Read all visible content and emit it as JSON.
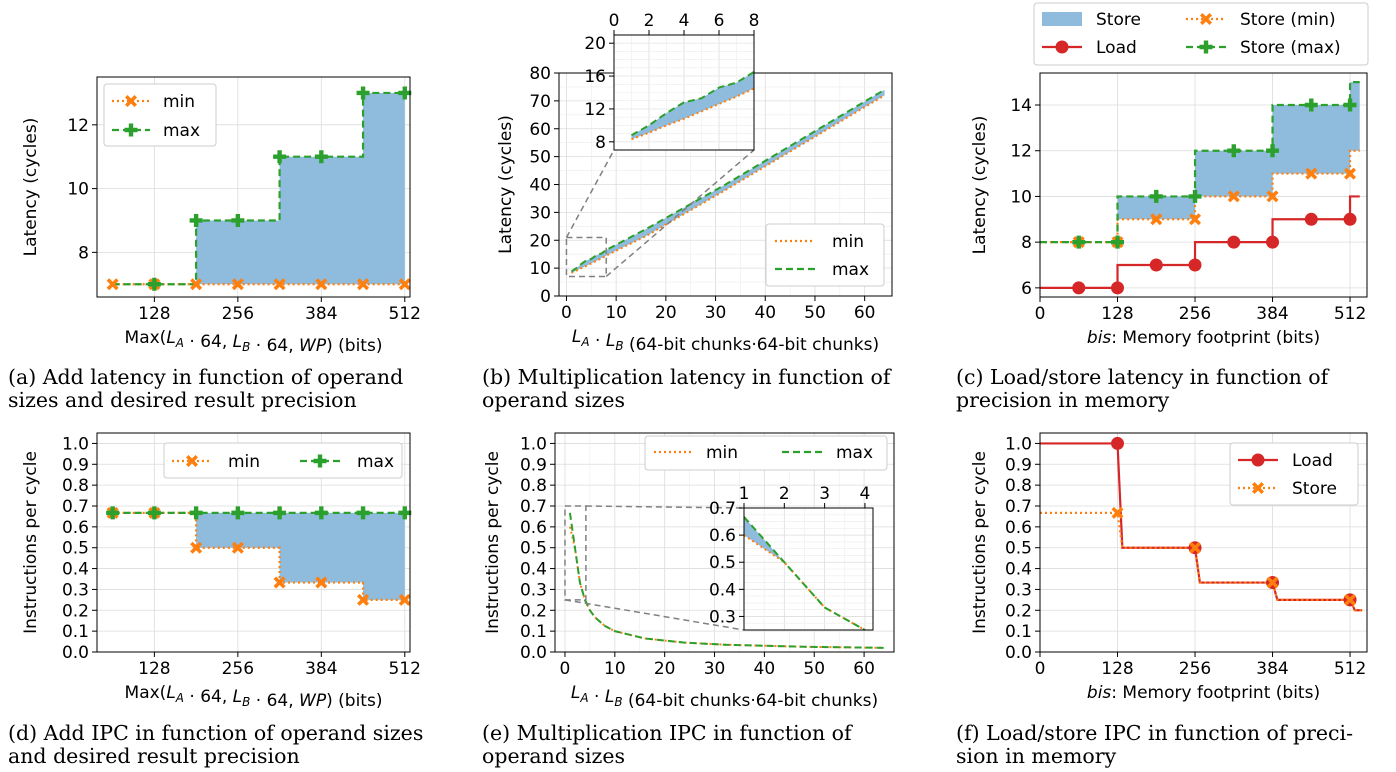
{
  "colors": {
    "fill": "#8fbbdc",
    "orange": "#ff7f0e",
    "green": "#2ca02c",
    "red": "#d62728",
    "grid": "#dcdcdc",
    "zoom_box": "#808080"
  },
  "captions": {
    "a_line1": "(a) Add latency in function of operand",
    "a_line2": "sizes and desired result precision",
    "b_line1": "(b) Multiplication latency in function of",
    "b_line2": "operand sizes",
    "c_line1": "(c) Load/store latency in function of",
    "c_line2": "precision in memory",
    "d_line1": "(d) Add IPC in function of operand sizes",
    "d_line2": "and desired result precision",
    "e_line1": "(e) Multiplication IPC in function of",
    "e_line2": "operand sizes",
    "f_line1": "(f) Load/store IPC in function of preci-",
    "f_line2": "sion in memory"
  },
  "chart_data": [
    {
      "id": "a",
      "type": "area",
      "xlabel": "Max(L_A · 64, L_B · 64, WP) (bits)",
      "ylabel": "Latency (cycles)",
      "xlim": [
        40,
        520
      ],
      "ylim": [
        6.6,
        13.5
      ],
      "xticks": [
        128,
        256,
        384,
        512
      ],
      "yticks": [
        8,
        10,
        12
      ],
      "legend": "upper-left",
      "series": [
        {
          "name": "min",
          "style": "dotted-x",
          "x": [
            64,
            128,
            192,
            256,
            320,
            384,
            448,
            512
          ],
          "y": [
            7,
            7,
            7,
            7,
            7,
            7,
            7,
            7
          ]
        },
        {
          "name": "max",
          "style": "dashed-plus",
          "x": [
            64,
            128,
            192,
            256,
            320,
            384,
            448,
            512
          ],
          "y": [
            7,
            7,
            9,
            9,
            11,
            11,
            13,
            13
          ]
        }
      ]
    },
    {
      "id": "b",
      "type": "line",
      "xlabel": "L_A · L_B (64-bit chunks·64-bit chunks)",
      "ylabel": "Latency (cycles)",
      "xlim": [
        -1.5,
        65.5
      ],
      "ylim": [
        0,
        80
      ],
      "xticks": [
        0,
        10,
        20,
        30,
        40,
        50,
        60
      ],
      "yticks": [
        0,
        10,
        20,
        30,
        40,
        50,
        60,
        70,
        80
      ],
      "legend": "lower-right",
      "series": [
        {
          "name": "min",
          "style": "dotted",
          "x": [
            1,
            2,
            3,
            4,
            5,
            6,
            7,
            8,
            16,
            32,
            48,
            64
          ],
          "y": [
            8.3,
            9.1,
            10,
            10.8,
            11.7,
            12.6,
            13.5,
            14.5,
            21.5,
            38,
            55,
            72
          ]
        },
        {
          "name": "max",
          "style": "dashed",
          "x": [
            1,
            2,
            3,
            4,
            5,
            6,
            7,
            8,
            16,
            32,
            48,
            64
          ],
          "y": [
            8.8,
            10,
            11.5,
            12.8,
            13.3,
            14.6,
            15.2,
            16.5,
            24,
            40,
            57,
            74
          ]
        }
      ],
      "inset": {
        "xlim": [
          0,
          8
        ],
        "ylim": [
          7,
          21
        ],
        "xticks": [
          0,
          2,
          4,
          6,
          8
        ],
        "yticks": [
          8,
          12,
          16,
          20
        ],
        "zoom_region": {
          "x": [
            0,
            8
          ],
          "y": [
            7,
            21
          ]
        }
      }
    },
    {
      "id": "c",
      "type": "area",
      "xlabel": "bis: Memory footprint (bits)",
      "ylabel": "Latency (cycles)",
      "xlim": [
        0,
        540
      ],
      "ylim": [
        5.6,
        15.4
      ],
      "xticks": [
        0,
        128,
        256,
        384,
        512
      ],
      "yticks": [
        6,
        8,
        10,
        12,
        14
      ],
      "legend": "above-plot",
      "series": [
        {
          "name": "Store",
          "style": "filled-band"
        },
        {
          "name": "Load",
          "style": "solid-circle",
          "x": [
            0,
            64,
            128,
            192,
            256,
            320,
            384,
            448,
            512,
            528
          ],
          "y": [
            6,
            6,
            7,
            7,
            8,
            8,
            9,
            9,
            10,
            10
          ],
          "markers_x": [
            64,
            128,
            192,
            256,
            320,
            384,
            448,
            512
          ],
          "markers_y": [
            6,
            6,
            7,
            7,
            8,
            8,
            9,
            9
          ]
        },
        {
          "name": "Store (min)",
          "style": "dotted-x",
          "x": [
            0,
            64,
            128,
            192,
            256,
            320,
            384,
            448,
            512,
            528
          ],
          "y": [
            8,
            8,
            9,
            9,
            10,
            10,
            11,
            11,
            12,
            12
          ],
          "markers_x": [
            64,
            128,
            192,
            256,
            320,
            384,
            448,
            512
          ],
          "markers_y": [
            8,
            8,
            9,
            9,
            10,
            10,
            11,
            11
          ]
        },
        {
          "name": "Store (max)",
          "style": "dashed-plus",
          "x": [
            0,
            64,
            128,
            192,
            256,
            320,
            384,
            448,
            512,
            528
          ],
          "y": [
            8,
            8,
            10,
            10,
            12,
            12,
            14,
            14,
            15,
            15
          ],
          "markers_x": [
            64,
            128,
            192,
            256,
            320,
            384,
            448,
            512
          ],
          "markers_y": [
            8,
            8,
            10,
            10,
            12,
            12,
            14,
            14
          ]
        }
      ]
    },
    {
      "id": "d",
      "type": "area",
      "xlabel": "Max(L_A · 64, L_B · 64, WP) (bits)",
      "ylabel": "Instructions per cycle",
      "xlim": [
        40,
        520
      ],
      "ylim": [
        0,
        1.05
      ],
      "xticks": [
        128,
        256,
        384,
        512
      ],
      "yticks": [
        0.0,
        0.1,
        0.2,
        0.3,
        0.4,
        0.5,
        0.6,
        0.7,
        0.8,
        0.9,
        1.0
      ],
      "legend": "upper-right",
      "series": [
        {
          "name": "min",
          "style": "dotted-x",
          "x": [
            64,
            128,
            192,
            256,
            320,
            384,
            448,
            512
          ],
          "y": [
            0.667,
            0.667,
            0.5,
            0.5,
            0.333,
            0.333,
            0.25,
            0.25
          ]
        },
        {
          "name": "max",
          "style": "dashed-plus",
          "x": [
            64,
            128,
            192,
            256,
            320,
            384,
            448,
            512
          ],
          "y": [
            0.667,
            0.667,
            0.667,
            0.667,
            0.667,
            0.667,
            0.667,
            0.667
          ]
        }
      ]
    },
    {
      "id": "e",
      "type": "line",
      "xlabel": "L_A · L_B (64-bit chunks·64-bit chunks)",
      "ylabel": "Instructions per cycle",
      "xlim": [
        -2,
        66
      ],
      "ylim": [
        0,
        1.05
      ],
      "xticks": [
        0,
        10,
        20,
        30,
        40,
        50,
        60
      ],
      "yticks": [
        0.0,
        0.1,
        0.2,
        0.3,
        0.4,
        0.5,
        0.6,
        0.7,
        0.8,
        0.9,
        1.0
      ],
      "legend": "upper-right",
      "series": [
        {
          "name": "min",
          "style": "dotted",
          "x": [
            1,
            2,
            3,
            4,
            5,
            6,
            8,
            10,
            16,
            24,
            32,
            48,
            64
          ],
          "y": [
            0.6,
            0.5,
            0.333,
            0.25,
            0.2,
            0.167,
            0.125,
            0.1,
            0.065,
            0.045,
            0.035,
            0.025,
            0.02
          ]
        },
        {
          "name": "max",
          "style": "dashed",
          "x": [
            1,
            2,
            3,
            4,
            5,
            6,
            8,
            10,
            16,
            24,
            32,
            48,
            64
          ],
          "y": [
            0.667,
            0.5,
            0.333,
            0.25,
            0.2,
            0.167,
            0.125,
            0.1,
            0.065,
            0.045,
            0.035,
            0.025,
            0.02
          ]
        }
      ],
      "inset": {
        "xlim": [
          1,
          4.2
        ],
        "ylim": [
          0.25,
          0.7
        ],
        "xticks": [
          1,
          2,
          3,
          4
        ],
        "yticks": [
          0.3,
          0.4,
          0.5,
          0.6,
          0.7
        ],
        "zoom_region": {
          "x": [
            0,
            4.2
          ],
          "y": [
            0.25,
            0.7
          ]
        }
      }
    },
    {
      "id": "f",
      "type": "line",
      "xlabel": "bis: Memory footprint (bits)",
      "ylabel": "Instructions per cycle",
      "xlim": [
        0,
        540
      ],
      "ylim": [
        0,
        1.05
      ],
      "xticks": [
        0,
        128,
        256,
        384,
        512
      ],
      "yticks": [
        0.0,
        0.1,
        0.2,
        0.3,
        0.4,
        0.5,
        0.6,
        0.7,
        0.8,
        0.9,
        1.0
      ],
      "legend": "upper-right",
      "series": [
        {
          "name": "Load",
          "style": "solid-circle",
          "x": [
            0,
            128,
            136,
            256,
            264,
            384,
            392,
            512,
            520,
            532
          ],
          "y": [
            1.0,
            1.0,
            0.5,
            0.5,
            0.333,
            0.333,
            0.25,
            0.25,
            0.2,
            0.2
          ],
          "markers_x": [
            128,
            256,
            384,
            512
          ],
          "markers_y": [
            1.0,
            0.5,
            0.333,
            0.25
          ]
        },
        {
          "name": "Store",
          "style": "dotted-x",
          "x": [
            0,
            128,
            136,
            256,
            264,
            384,
            392,
            512,
            520,
            532
          ],
          "y": [
            0.667,
            0.667,
            0.5,
            0.5,
            0.333,
            0.333,
            0.25,
            0.25,
            0.2,
            0.2
          ],
          "markers_x": [
            128,
            256,
            384,
            512
          ],
          "markers_y": [
            0.667,
            0.5,
            0.333,
            0.25
          ]
        }
      ]
    }
  ]
}
